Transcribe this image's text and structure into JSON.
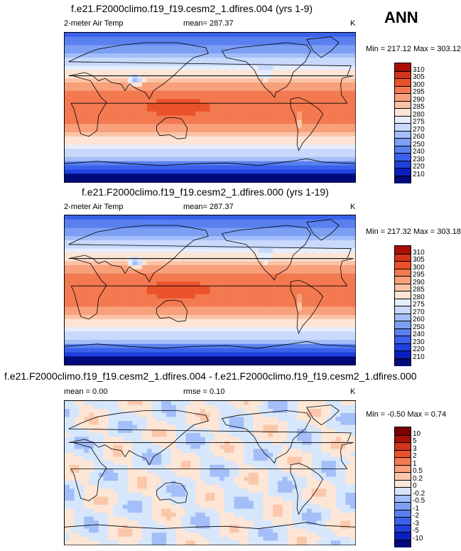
{
  "season_label": "ANN",
  "panels": [
    {
      "title": "f.e21.F2000climo.f19_f19.cesm2_1.dfires.004 (yrs 1-9)",
      "left_label": "2-meter Air Temp",
      "center_label": "mean= 287.37",
      "right_label": "K",
      "minmax": "Min = 217.12 Max = 303.12",
      "kind": "abs"
    },
    {
      "title": "f.e21.F2000climo.f19_f19.cesm2_1.dfires.000 (yrs 1-19)",
      "left_label": "2-meter Air Temp",
      "center_label": "mean= 287.37",
      "right_label": "K",
      "minmax": "Min = 217.32 Max = 303.18",
      "kind": "abs"
    },
    {
      "title": "f.e21.F2000climo.f19_f19.cesm2_1.dfires.004 - f.e21.F2000climo.f19_f19.cesm2_1.dfires.000",
      "left_label": "mean =   0.00",
      "center_label": "rmse =   0.10",
      "right_label": "K",
      "minmax": "Min =  -0.50 Max =   0.74",
      "kind": "diff"
    }
  ],
  "chart_data": [
    {
      "type": "heatmap",
      "title": "f.e21.F2000climo.f19_f19.cesm2_1.dfires.004 (yrs 1-9)",
      "variable": "2-meter Air Temp",
      "units": "K",
      "mean": 287.37,
      "min": 217.12,
      "max": 303.12,
      "contour_levels": [
        210,
        220,
        230,
        240,
        250,
        260,
        270,
        275,
        280,
        285,
        290,
        295,
        300,
        305,
        310
      ],
      "colors": [
        "#000a7a",
        "#0b1fbf",
        "#1f40de",
        "#3a61ea",
        "#5a80f0",
        "#7c9ff4",
        "#a3bef8",
        "#c8d9fb",
        "#e6eefd",
        "#fde4d4",
        "#fbc3a6",
        "#f8a07b",
        "#f37950",
        "#ea522b",
        "#d2331a",
        "#a80f05"
      ]
    },
    {
      "type": "heatmap",
      "title": "f.e21.F2000climo.f19_f19.cesm2_1.dfires.000 (yrs 1-19)",
      "variable": "2-meter Air Temp",
      "units": "K",
      "mean": 287.37,
      "min": 217.32,
      "max": 303.18,
      "contour_levels": [
        210,
        220,
        230,
        240,
        250,
        260,
        270,
        275,
        280,
        285,
        290,
        295,
        300,
        305,
        310
      ],
      "colors": [
        "#000a7a",
        "#0b1fbf",
        "#1f40de",
        "#3a61ea",
        "#5a80f0",
        "#7c9ff4",
        "#a3bef8",
        "#c8d9fb",
        "#e6eefd",
        "#fde4d4",
        "#fbc3a6",
        "#f8a07b",
        "#f37950",
        "#ea522b",
        "#d2331a",
        "#a80f05"
      ]
    },
    {
      "type": "heatmap",
      "title": "f.e21.F2000climo.f19_f19.cesm2_1.dfires.004 - f.e21.F2000climo.f19_f19.cesm2_1.dfires.000",
      "units": "K",
      "mean": 0.0,
      "rmse": 0.1,
      "min": -0.5,
      "max": 0.74,
      "contour_levels": [
        -10,
        -5,
        -3,
        -2,
        -1,
        -0.5,
        -0.2,
        0,
        0.2,
        0.5,
        1,
        2,
        3,
        5,
        10
      ],
      "colors": [
        "#000a7a",
        "#0b1fbf",
        "#1f40de",
        "#3a61ea",
        "#5a80f0",
        "#7c9ff4",
        "#a3bef8",
        "#d6e6fb",
        "#fde6d6",
        "#fbc7aa",
        "#f8a07b",
        "#f37950",
        "#ea522b",
        "#d2331a",
        "#a80f05",
        "#7a0000"
      ]
    }
  ]
}
